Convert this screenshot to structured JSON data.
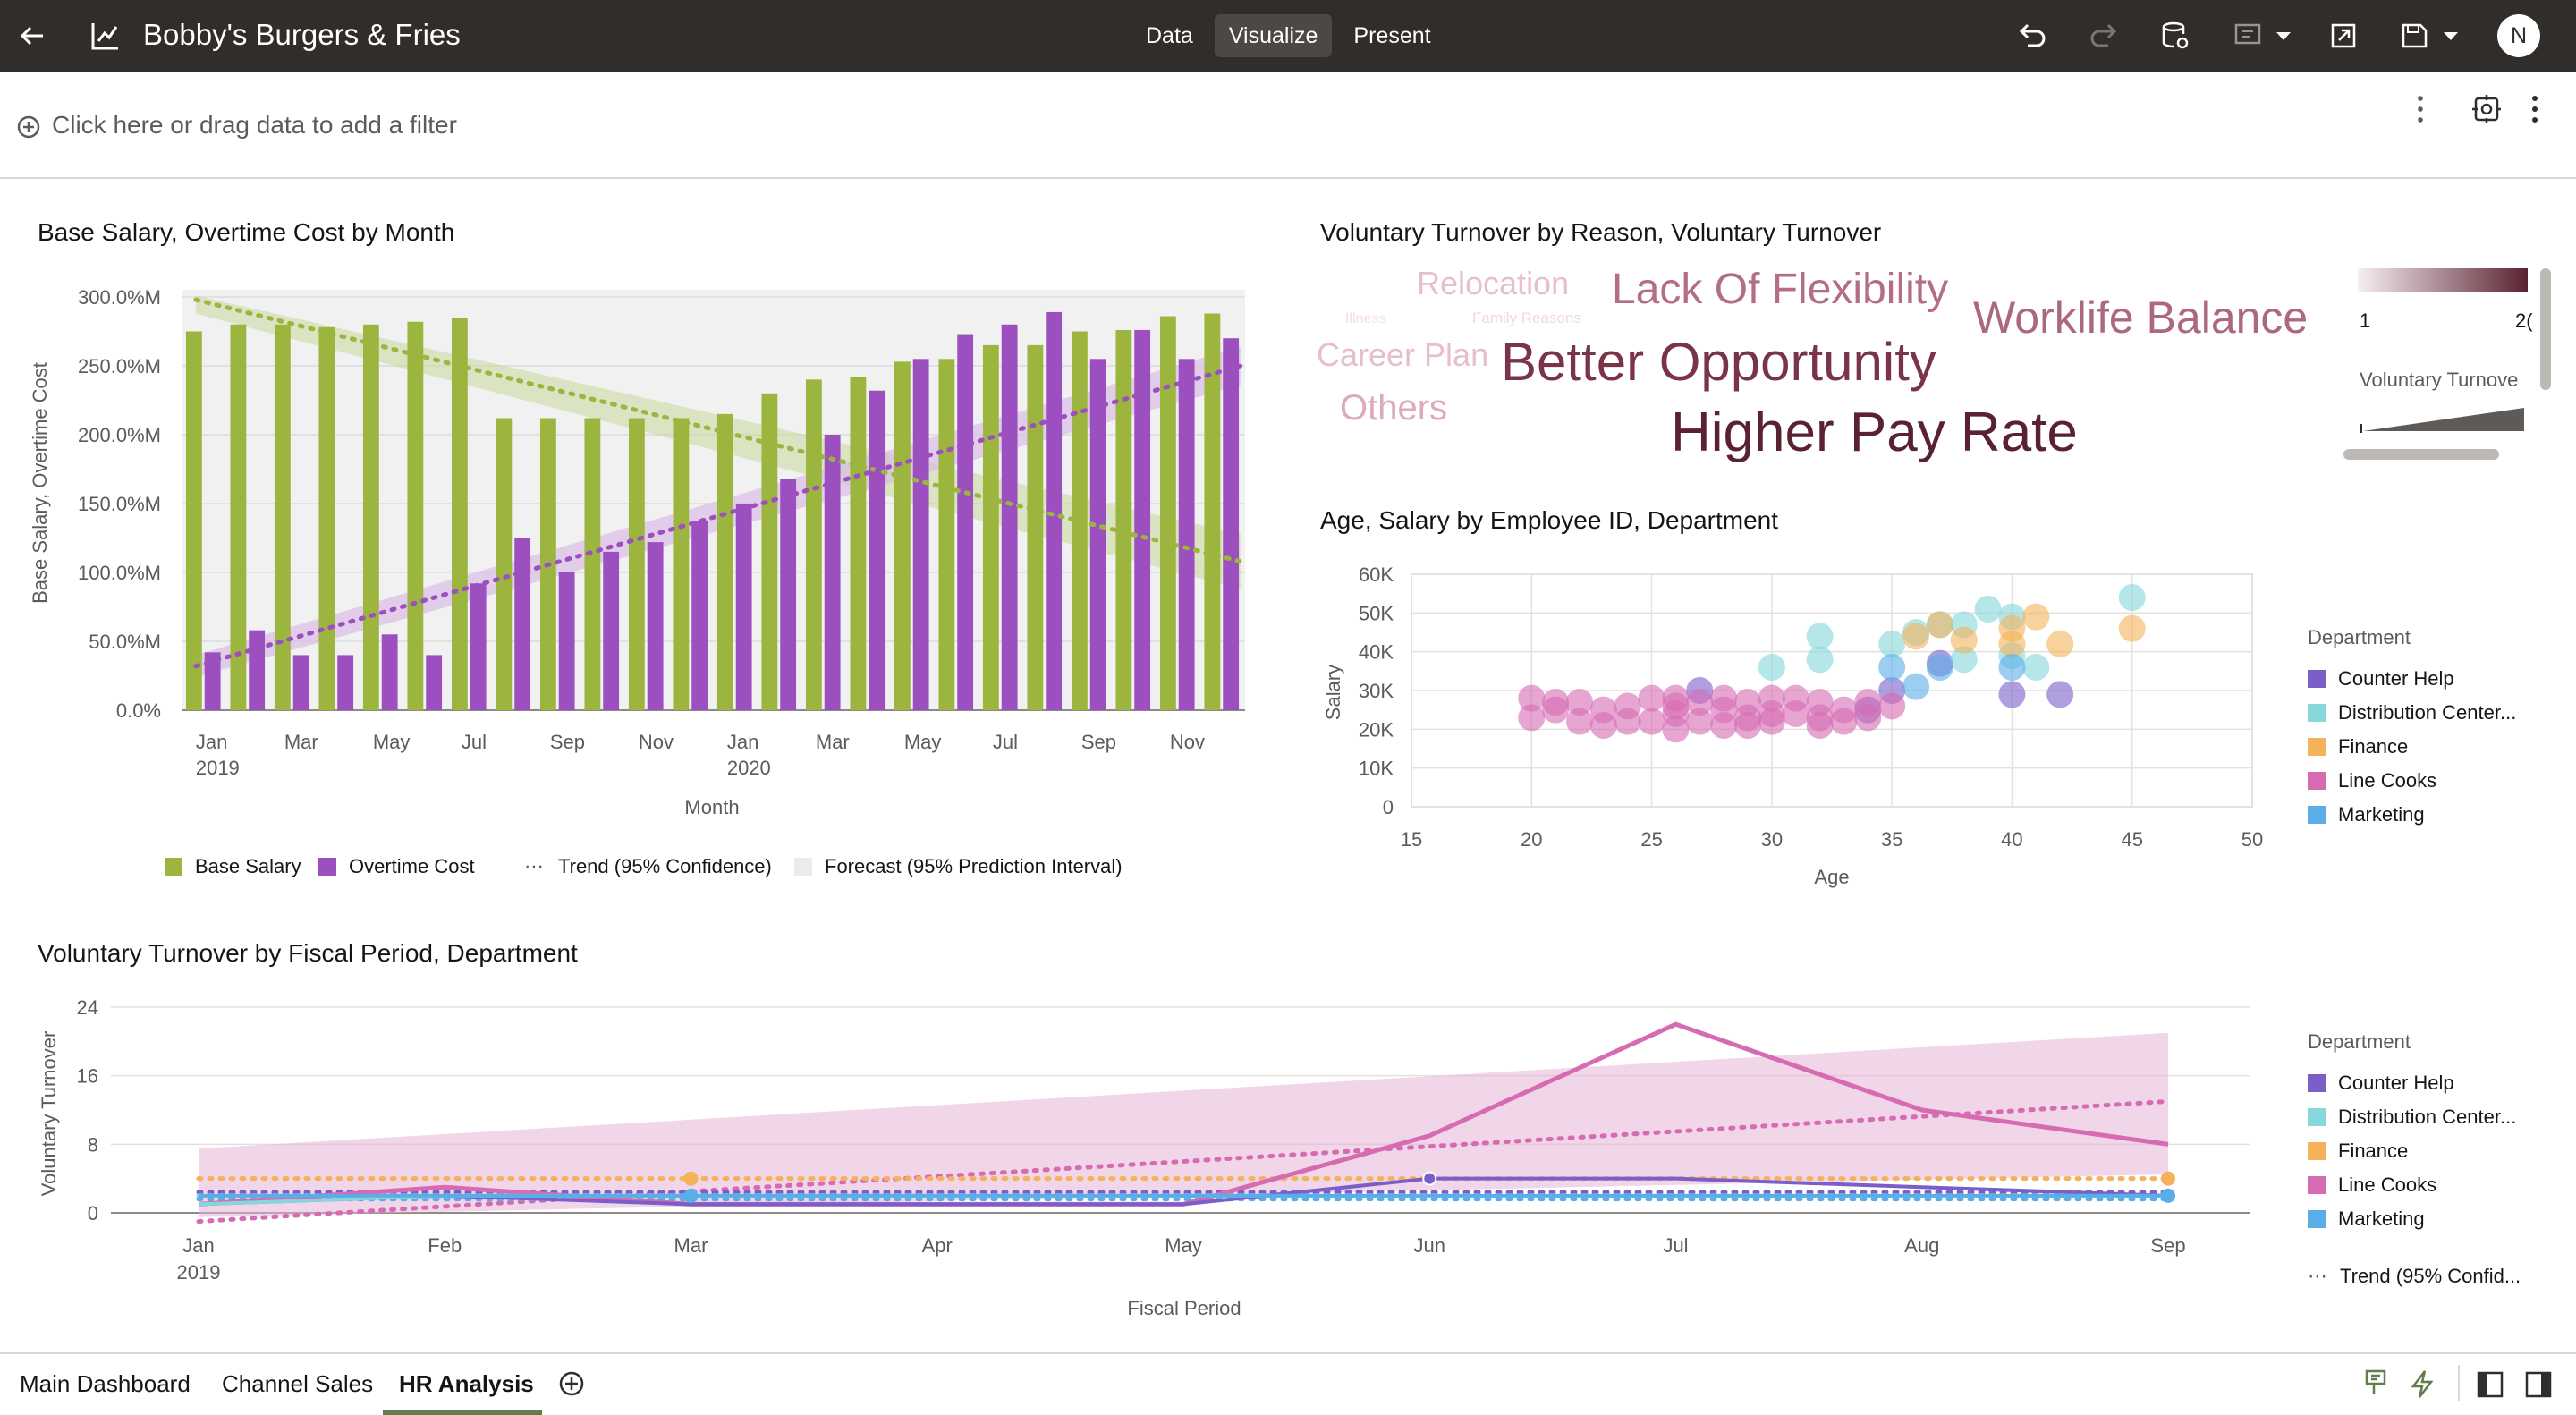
{
  "app": {
    "title": "Bobby's Burgers & Fries",
    "modes": [
      "Data",
      "Visualize",
      "Present"
    ],
    "active_mode": "Visualize",
    "user_initial": "N"
  },
  "filter": {
    "placeholder": "Click here or drag data to add a filter"
  },
  "bar_chart": {
    "title": "Base Salary, Overtime Cost by Month",
    "ylabel": "Base Salary, Overtime Cost",
    "xlabel": "Month",
    "yticks": [
      "300.0%M",
      "250.0%M",
      "200.0%M",
      "150.0%M",
      "100.0%M",
      "50.0%M",
      "0.0%"
    ],
    "xticks": [
      "Jan",
      "Mar",
      "May",
      "Jul",
      "Sep",
      "Nov",
      "Jan",
      "Mar",
      "May",
      "Jul",
      "Sep",
      "Nov"
    ],
    "xyears": [
      "2019",
      "2020"
    ],
    "legend": [
      "Base Salary",
      "Overtime Cost",
      "Trend (95% Confidence)",
      "Forecast (95% Prediction Interval)"
    ]
  },
  "wordcloud": {
    "title": "Voluntary Turnover by Reason, Voluntary Turnover",
    "words": [
      "Relocation",
      "Lack Of Flexibility",
      "Worklife Balance",
      "Illness",
      "Family Reasons",
      "Career Plan",
      "Better Opportunity",
      "Others",
      "Higher Pay Rate"
    ],
    "legend_min": "1",
    "legend_max": "2(",
    "legend_label": "Voluntary Turnove"
  },
  "scatter": {
    "title": "Age, Salary by Employee ID, Department",
    "ylabel": "Salary",
    "xlabel": "Age",
    "yticks": [
      "60K",
      "50K",
      "40K",
      "30K",
      "20K",
      "10K",
      "0"
    ],
    "xticks": [
      "15",
      "20",
      "25",
      "30",
      "35",
      "40",
      "45",
      "50"
    ],
    "legend_title": "Department",
    "departments": [
      "Counter Help",
      "Distribution Center...",
      "Finance",
      "Line Cooks",
      "Marketing"
    ]
  },
  "line_chart": {
    "title": "Voluntary Turnover by Fiscal Period, Department",
    "ylabel": "Voluntary Turnover",
    "xlabel": "Fiscal Period",
    "yticks": [
      "24",
      "16",
      "8",
      "0"
    ],
    "xticks": [
      "Jan",
      "Feb",
      "Mar",
      "Apr",
      "May",
      "Jun",
      "Jul",
      "Aug",
      "Sep"
    ],
    "xyear": "2019",
    "legend_title": "Department",
    "departments": [
      "Counter Help",
      "Distribution Center...",
      "Finance",
      "Line Cooks",
      "Marketing"
    ],
    "trend_label": "Trend (95% Confid..."
  },
  "tabs": [
    "Main Dashboard",
    "Channel Sales",
    "HR Analysis"
  ],
  "active_tab": "HR Analysis",
  "colors": {
    "topbar": "#312d2a",
    "base_salary": "#9cb53e",
    "overtime": "#9c4fbf",
    "counter_help": "#7b5fc9",
    "distribution": "#86d7d9",
    "finance": "#f4b35b",
    "line_cooks": "#d66bb2",
    "marketing": "#5aaee8",
    "wordcloud_dark": "#5a2231"
  },
  "chart_data": [
    {
      "type": "bar",
      "title": "Base Salary, Overtime Cost by Month",
      "categories": [
        "Jan 2019",
        "Feb",
        "Mar",
        "Apr",
        "May",
        "Jun",
        "Jul",
        "Aug",
        "Sep",
        "Oct",
        "Nov",
        "Dec",
        "Jan 2020",
        "Feb",
        "Mar",
        "Apr",
        "May",
        "Jun",
        "Jul",
        "Aug",
        "Sep",
        "Oct",
        "Nov",
        "Dec"
      ],
      "series": [
        {
          "name": "Base Salary",
          "values": [
            275,
            280,
            280,
            278,
            280,
            282,
            285,
            212,
            212,
            212,
            212,
            212,
            215,
            230,
            240,
            242,
            253,
            255,
            265,
            265,
            275,
            276,
            286,
            288
          ]
        },
        {
          "name": "Overtime Cost",
          "values": [
            42,
            58,
            40,
            40,
            55,
            40,
            92,
            125,
            100,
            115,
            122,
            137,
            150,
            168,
            200,
            232,
            255,
            273,
            280,
            289,
            255,
            276,
            255,
            270
          ]
        }
      ],
      "trend_base_salary": [
        298,
        108
      ],
      "trend_overtime": [
        32,
        250
      ],
      "ylim": [
        0,
        300
      ]
    },
    {
      "type": "scatter",
      "title": "Age, Salary by Employee ID, Department",
      "xlim": [
        15,
        50
      ],
      "ylim": [
        0,
        60
      ],
      "series": [
        {
          "name": "Counter Help",
          "points": [
            [
              27,
              30
            ],
            [
              40,
              29
            ],
            [
              42,
              29
            ],
            [
              34,
              25
            ],
            [
              35,
              30
            ],
            [
              37,
              37
            ]
          ]
        },
        {
          "name": "Distribution Center...",
          "points": [
            [
              32,
              44
            ],
            [
              32,
              38
            ],
            [
              30,
              36
            ],
            [
              35,
              42
            ],
            [
              36,
              45
            ],
            [
              37,
              47
            ],
            [
              38,
              47
            ],
            [
              39,
              51
            ],
            [
              40,
              49
            ],
            [
              41,
              36
            ],
            [
              45,
              54
            ],
            [
              38,
              38
            ],
            [
              40,
              39
            ]
          ]
        },
        {
          "name": "Finance",
          "points": [
            [
              36,
              44
            ],
            [
              37,
              47
            ],
            [
              38,
              43
            ],
            [
              40,
              46
            ],
            [
              41,
              49
            ],
            [
              42,
              42
            ],
            [
              45,
              46
            ],
            [
              40,
              42
            ]
          ]
        },
        {
          "name": "Line Cooks",
          "points": [
            [
              20,
              28
            ],
            [
              20,
              23
            ],
            [
              21,
              27
            ],
            [
              22,
              27
            ],
            [
              22,
              22
            ],
            [
              23,
              25
            ],
            [
              23,
              21
            ],
            [
              24,
              26
            ],
            [
              25,
              28
            ],
            [
              25,
              22
            ],
            [
              26,
              28
            ],
            [
              26,
              24
            ],
            [
              26,
              20
            ],
            [
              27,
              27
            ],
            [
              27,
              22
            ],
            [
              28,
              25
            ],
            [
              28,
              21
            ],
            [
              29,
              27
            ],
            [
              29,
              23
            ],
            [
              30,
              28
            ],
            [
              30,
              22
            ],
            [
              31,
              24
            ],
            [
              32,
              27
            ],
            [
              32,
              21
            ],
            [
              33,
              25
            ],
            [
              34,
              27
            ],
            [
              34,
              23
            ],
            [
              35,
              26
            ],
            [
              21,
              25
            ],
            [
              24,
              22
            ],
            [
              26,
              26
            ],
            [
              28,
              28
            ],
            [
              30,
              24
            ],
            [
              32,
              23
            ],
            [
              33,
              22
            ],
            [
              31,
              28
            ],
            [
              29,
              21
            ]
          ]
        },
        {
          "name": "Marketing",
          "points": [
            [
              35,
              36
            ],
            [
              36,
              31
            ],
            [
              37,
              36
            ],
            [
              40,
              36
            ]
          ]
        }
      ]
    },
    {
      "type": "line",
      "title": "Voluntary Turnover by Fiscal Period, Department",
      "categories": [
        "Jan 2019",
        "Feb",
        "Mar",
        "Apr",
        "May",
        "Jun",
        "Jul",
        "Aug",
        "Sep"
      ],
      "series": [
        {
          "name": "Line Cooks",
          "values": [
            1,
            3,
            1,
            1,
            1,
            9,
            22,
            12,
            8
          ]
        },
        {
          "name": "Finance",
          "values": [
            4,
            4,
            4,
            4,
            4,
            4,
            4,
            4,
            4
          ]
        },
        {
          "name": "Counter Help",
          "values": [
            1,
            2,
            1,
            1,
            1,
            4,
            4,
            3,
            2
          ]
        },
        {
          "name": "Distribution Center...",
          "values": [
            1,
            2,
            2,
            2,
            2,
            2,
            2,
            2,
            2
          ]
        },
        {
          "name": "Marketing",
          "values": [
            2,
            2,
            2,
            2,
            2,
            2,
            2,
            2,
            2
          ]
        }
      ],
      "trend_line_cooks": [
        -1,
        13
      ],
      "ylim": [
        0,
        24
      ]
    }
  ]
}
